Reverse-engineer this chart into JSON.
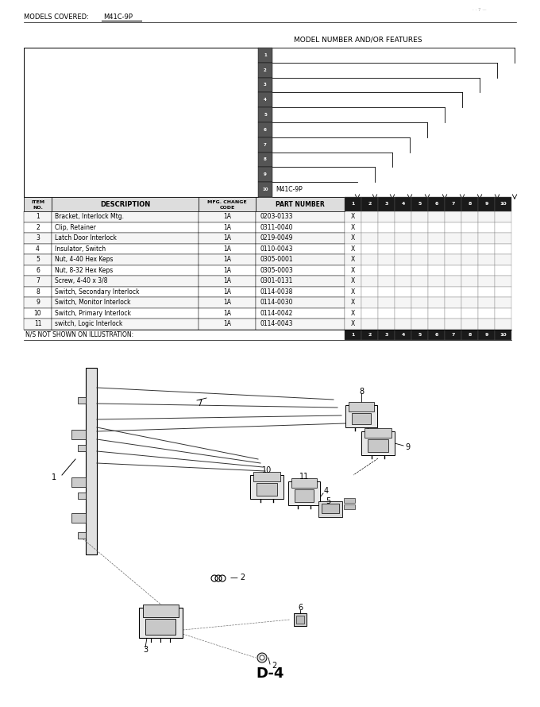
{
  "models_label": "MODELS COVERED:",
  "model_name": "M41C-9P",
  "header_label": "MODEL NUMBER AND/OR FEATURES",
  "page_ref": "D-4",
  "rows": [
    {
      "item": "1",
      "desc": "Bracket, Interlock Mtg.",
      "mfg": "1A",
      "part": "0203-0133"
    },
    {
      "item": "2",
      "desc": "Clip, Retainer",
      "mfg": "1A",
      "part": "0311-0040"
    },
    {
      "item": "3",
      "desc": "Latch Door Interlock",
      "mfg": "1A",
      "part": "0219-0049"
    },
    {
      "item": "4",
      "desc": "Insulator, Switch",
      "mfg": "1A",
      "part": "0110-0043"
    },
    {
      "item": "5",
      "desc": "Nut, 4-40 Hex Keps",
      "mfg": "1A",
      "part": "0305-0001"
    },
    {
      "item": "6",
      "desc": "Nut, 8-32 Hex Keps",
      "mfg": "1A",
      "part": "0305-0003"
    },
    {
      "item": "7",
      "desc": "Screw, 4-40 x 3/8",
      "mfg": "1A",
      "part": "0301-0131"
    },
    {
      "item": "8",
      "desc": "Switch, Secondary Interlock",
      "mfg": "1A",
      "part": "0114-0038"
    },
    {
      "item": "9",
      "desc": "Switch, Monitor Interlock",
      "mfg": "1A",
      "part": "0114-0030"
    },
    {
      "item": "10",
      "desc": "Switch, Primary Interlock",
      "mfg": "1A",
      "part": "0114-0042"
    },
    {
      "item": "11",
      "desc": "switch, Logic Interlock",
      "mfg": "1A",
      "part": "0114-0043"
    }
  ],
  "ns_note": "N/S NOT SHOWN ON ILLUSTRATION:",
  "bg_color": "#ffffff",
  "dark_box": "#1a1a1a",
  "mid_gray": "#888888",
  "light_gray": "#cccccc",
  "stair_levels": 10,
  "num_cols": 10
}
